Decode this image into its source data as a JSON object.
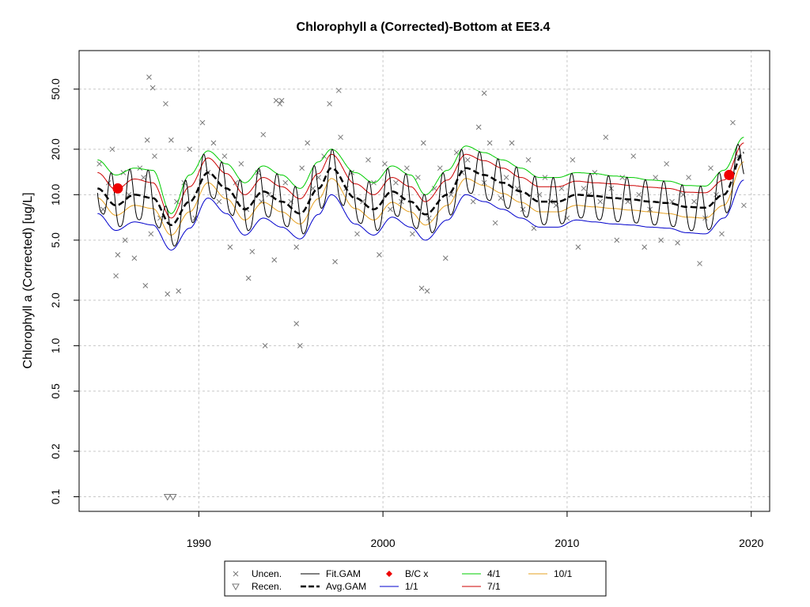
{
  "chart_data": {
    "type": "line",
    "title": "Chlorophyll a (Corrected)-Bottom at EE3.4",
    "xlabel": "",
    "ylabel": "Chlorophyll a (Corrected) [ug/L]",
    "y_scale": "log",
    "xlim": [
      1983.5,
      2021.0
    ],
    "ylim": [
      0.08,
      90
    ],
    "x_ticks": [
      1990,
      2000,
      2010,
      2020
    ],
    "x_tick_labels": [
      "1990",
      "2000",
      "2010",
      "2020"
    ],
    "y_ticks": [
      0.1,
      0.2,
      0.5,
      1.0,
      2.0,
      5.0,
      10.0,
      20.0,
      50.0
    ],
    "y_tick_labels": [
      "0.1",
      "0.2",
      "0.5",
      "1.0",
      "2.0",
      "5.0",
      "10.0",
      "20.0",
      "50.0"
    ],
    "grid": true,
    "legend_position": "bottom",
    "series": [
      {
        "name": "Avg.GAM",
        "color": "#000000",
        "style": "dashed-thick",
        "x": [
          1984.5,
          1985.5,
          1986.5,
          1987.5,
          1988.5,
          1989.5,
          1990.5,
          1991.5,
          1992.5,
          1993.5,
          1994.5,
          1995.5,
          1996.5,
          1997.2,
          1998.5,
          1999.5,
          2000.5,
          2001.5,
          2002.3,
          2003.5,
          2004.5,
          2005.5,
          2006.5,
          2007.5,
          2008.5,
          2009.5,
          2010.5,
          2011.5,
          2012.5,
          2013.5,
          2014.5,
          2015.5,
          2016.5,
          2017.5,
          2018.5,
          2019.6
        ],
        "values": [
          11.0,
          8.5,
          10.0,
          9.5,
          6.3,
          9.0,
          14.0,
          11.0,
          8.0,
          10.5,
          9.0,
          7.5,
          11.0,
          15.0,
          9.5,
          8.0,
          10.5,
          9.0,
          7.4,
          10.0,
          15.0,
          13.5,
          12.0,
          10.5,
          9.0,
          9.0,
          10.0,
          9.8,
          9.5,
          9.3,
          9.0,
          8.8,
          8.3,
          8.2,
          10.0,
          19.0
        ]
      },
      {
        "name": "Fit.GAM",
        "color": "#000000",
        "style": "solid-seasonal"
      },
      {
        "name": "1/1",
        "color": "#0000cc",
        "style": "solid",
        "x": [
          1984.5,
          1985.5,
          1986.5,
          1987.5,
          1988.5,
          1989.5,
          1990.5,
          1991.5,
          1992.5,
          1993.5,
          1994.5,
          1995.5,
          1996.5,
          1997.2,
          1998.5,
          1999.5,
          2000.5,
          2001.5,
          2002.3,
          2003.5,
          2004.5,
          2005.5,
          2006.5,
          2007.5,
          2008.5,
          2009.5,
          2010.5,
          2011.5,
          2012.5,
          2013.5,
          2014.5,
          2015.5,
          2016.5,
          2017.5,
          2018.5,
          2019.6
        ],
        "values": [
          7.5,
          5.8,
          6.6,
          6.3,
          4.3,
          6.0,
          9.5,
          7.5,
          5.4,
          7.0,
          6.1,
          5.1,
          7.4,
          10.0,
          6.4,
          5.4,
          7.1,
          6.1,
          5.0,
          6.8,
          10.0,
          9.0,
          8.0,
          7.0,
          6.1,
          6.1,
          6.8,
          6.6,
          6.4,
          6.3,
          6.1,
          6.0,
          5.6,
          5.5,
          7.0,
          12.5
        ]
      },
      {
        "name": "4/1",
        "color": "#00cc00",
        "style": "solid",
        "x": [
          1984.5,
          1985.5,
          1986.5,
          1987.5,
          1988.5,
          1989.5,
          1990.5,
          1991.5,
          1992.5,
          1993.5,
          1994.5,
          1995.5,
          1996.5,
          1997.2,
          1998.5,
          1999.5,
          2000.5,
          2001.5,
          2002.3,
          2003.5,
          2004.5,
          2005.5,
          2006.5,
          2007.5,
          2008.5,
          2009.5,
          2010.5,
          2011.5,
          2012.5,
          2013.5,
          2014.5,
          2015.5,
          2016.5,
          2017.5,
          2018.5,
          2019.6
        ],
        "values": [
          17.0,
          13.5,
          15.0,
          14.5,
          7.5,
          13.5,
          19.5,
          16.0,
          12.0,
          15.5,
          13.5,
          11.0,
          16.5,
          20.0,
          14.0,
          12.0,
          15.5,
          13.5,
          10.0,
          14.5,
          21.0,
          19.0,
          17.0,
          15.0,
          13.0,
          13.0,
          14.0,
          13.8,
          13.3,
          13.0,
          12.5,
          12.3,
          11.5,
          11.4,
          14.5,
          24.0
        ]
      },
      {
        "name": "7/1",
        "color": "#cc0000",
        "style": "solid",
        "x": [
          1984.5,
          1985.5,
          1986.5,
          1987.5,
          1988.5,
          1989.5,
          1990.5,
          1991.5,
          1992.5,
          1993.5,
          1994.5,
          1995.5,
          1996.5,
          1997.2,
          1998.5,
          1999.5,
          2000.5,
          2001.5,
          2002.3,
          2003.5,
          2004.5,
          2005.5,
          2006.5,
          2007.5,
          2008.5,
          2009.5,
          2010.5,
          2011.5,
          2012.5,
          2013.5,
          2014.5,
          2015.5,
          2016.5,
          2017.5,
          2018.5,
          2019.6
        ],
        "values": [
          14.0,
          10.8,
          12.7,
          12.0,
          7.0,
          11.3,
          17.5,
          13.8,
          10.0,
          13.0,
          11.3,
          9.4,
          13.8,
          18.5,
          11.8,
          10.0,
          13.0,
          11.3,
          9.0,
          12.5,
          18.5,
          16.8,
          15.0,
          13.0,
          11.3,
          11.3,
          12.3,
          12.0,
          11.8,
          11.5,
          11.2,
          11.0,
          10.4,
          10.3,
          12.5,
          22.0
        ]
      },
      {
        "name": "10/1",
        "color": "#e6a020",
        "style": "solid",
        "x": [
          1984.5,
          1985.5,
          1986.5,
          1987.5,
          1988.5,
          1989.5,
          1990.5,
          1991.5,
          1992.5,
          1993.5,
          1994.5,
          1995.5,
          1996.5,
          1997.2,
          1998.5,
          1999.5,
          2000.5,
          2001.5,
          2002.3,
          2003.5,
          2004.5,
          2005.5,
          2006.5,
          2007.5,
          2008.5,
          2009.5,
          2010.5,
          2011.5,
          2012.5,
          2013.5,
          2014.5,
          2015.5,
          2016.5,
          2017.5,
          2018.5,
          2019.6
        ],
        "values": [
          9.5,
          7.3,
          8.5,
          8.1,
          5.4,
          7.7,
          12.0,
          9.4,
          6.8,
          8.9,
          7.7,
          6.4,
          9.4,
          12.8,
          8.1,
          6.8,
          8.9,
          7.7,
          6.3,
          8.5,
          12.8,
          11.5,
          10.2,
          8.9,
          7.7,
          7.7,
          8.5,
          8.3,
          8.1,
          7.9,
          7.7,
          7.5,
          7.1,
          7.0,
          8.5,
          16.5
        ]
      }
    ],
    "uncensored_points": {
      "name": "Uncen.",
      "x": [
        1984.6,
        1984.8,
        1985.1,
        1985.3,
        1985.6,
        1985.9,
        1986.2,
        1986.5,
        1986.8,
        1987.0,
        1987.2,
        1987.4,
        1987.6,
        1987.9,
        1988.2,
        1988.5,
        1988.8,
        1989.2,
        1989.5,
        1989.8,
        1990.2,
        1990.5,
        1990.8,
        1991.1,
        1991.4,
        1991.7,
        1992.0,
        1992.3,
        1992.6,
        1992.9,
        1993.2,
        1993.5,
        1993.8,
        1994.1,
        1994.4,
        1994.7,
        1995.0,
        1995.3,
        1995.6,
        1995.9,
        1996.2,
        1996.5,
        1996.8,
        1997.1,
        1997.4,
        1997.7,
        1998.0,
        1998.3,
        1998.6,
        1998.9,
        1999.2,
        1999.5,
        1999.8,
        2000.1,
        2000.4,
        2000.7,
        2001.0,
        2001.3,
        2001.6,
        2001.9,
        2002.2,
        2002.5,
        2002.8,
        2003.1,
        2003.4,
        2003.7,
        2004.0,
        2004.3,
        2004.6,
        2004.9,
        2005.2,
        2005.5,
        2005.8,
        2006.1,
        2006.4,
        2006.7,
        2007.0,
        2007.3,
        2007.6,
        2007.9,
        2008.2,
        2008.5,
        2008.8,
        2009.1,
        2009.4,
        2009.7,
        2010.0,
        2010.3,
        2010.6,
        2010.9,
        2011.2,
        2011.5,
        2011.8,
        2012.1,
        2012.4,
        2012.7,
        2013.0,
        2013.3,
        2013.6,
        2013.9,
        2014.2,
        2014.5,
        2014.8,
        2015.1,
        2015.4,
        2015.7,
        2016.0,
        2016.3,
        2016.6,
        2016.9,
        2017.2,
        2017.5,
        2017.8,
        2018.1,
        2018.4,
        2018.7,
        2019.0,
        2019.3,
        2019.6,
        1987.3,
        1987.5,
        1988.3,
        1993.6,
        1995.3,
        1995.5,
        1997.6,
        1994.2,
        1994.5,
        2005.5,
        2002.1,
        2002.4,
        1988.9,
        1987.1,
        1985.5,
        1986.0,
        1992.7,
        1993.4
      ],
      "values": [
        16,
        8,
        12,
        20,
        4,
        14,
        10,
        3.8,
        15,
        13,
        23,
        5.5,
        18,
        7,
        40,
        23,
        9,
        12,
        20,
        7,
        30,
        14,
        22,
        9,
        18,
        4.5,
        12,
        16,
        8,
        4.2,
        14,
        25,
        10,
        3.7,
        40,
        12,
        9,
        4.5,
        15,
        22,
        11,
        13,
        18,
        40,
        3.6,
        24,
        11,
        14,
        5.5,
        9,
        17,
        12,
        4,
        16,
        8,
        12,
        9,
        15,
        5.5,
        13,
        22,
        7,
        11,
        15,
        3.8,
        10,
        19,
        14,
        17,
        9,
        28,
        12,
        22,
        6.5,
        9.5,
        13,
        22,
        11,
        8,
        17,
        6,
        10,
        13,
        9,
        8.5,
        11,
        7,
        17,
        4.5,
        11,
        10,
        14,
        9,
        24,
        11,
        5,
        13,
        9,
        18,
        10,
        4.5,
        8,
        13,
        5,
        16,
        9,
        4.8,
        10,
        13,
        9,
        3.5,
        7,
        15,
        10,
        5.5,
        13,
        30,
        18,
        8.5,
        60,
        51,
        2.2,
        1.0,
        1.4,
        1.0,
        49,
        42,
        42,
        47,
        2.4,
        2.3,
        2.3,
        2.5,
        2.9,
        5,
        2.8,
        9
      ]
    },
    "recensored_points": {
      "name": "Recen.",
      "x": [
        1988.3,
        1988.6
      ],
      "values": [
        0.1,
        0.1
      ]
    },
    "bc_points": {
      "name": "B/C x",
      "color": "#ee0000",
      "x": [
        1985.6,
        2018.8
      ],
      "values": [
        11.0,
        13.5
      ]
    },
    "legend": [
      {
        "label": "Uncen.",
        "symbol": "x"
      },
      {
        "label": "Recen.",
        "symbol": "triangle-down"
      },
      {
        "label": "Fit.GAM",
        "symbol": "line-solid-black"
      },
      {
        "label": "Avg.GAM",
        "symbol": "line-dashed-black"
      },
      {
        "label": "B/C x",
        "symbol": "red-diamond"
      },
      {
        "label": "1/1",
        "symbol": "line-blue"
      },
      {
        "label": "4/1",
        "symbol": "line-green"
      },
      {
        "label": "7/1",
        "symbol": "line-red"
      },
      {
        "label": "10/1",
        "symbol": "line-orange"
      }
    ]
  }
}
